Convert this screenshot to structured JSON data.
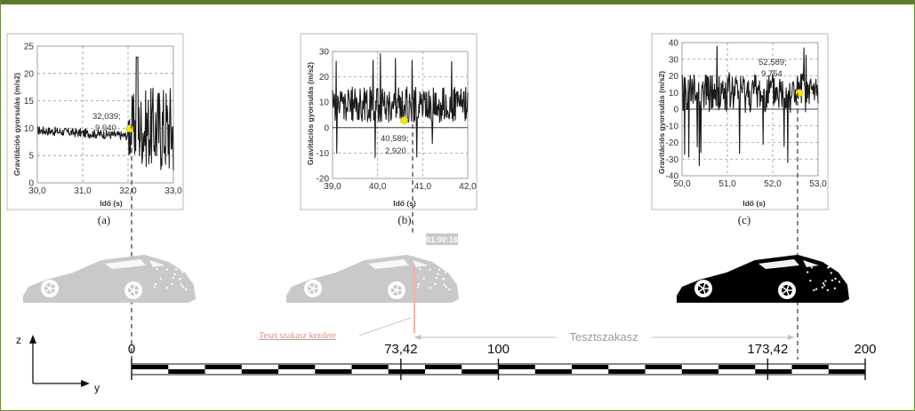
{
  "colors": {
    "frame": "#5a7a2c",
    "marker": "#f5e60a",
    "car_faded": "#c9c9c9",
    "car_dark": "#000000",
    "start_line": "#f4b3aa"
  },
  "panels": [
    {
      "id": "a",
      "letter": "(a)",
      "ylabel": "Gravitációs gyorsulás (m/s2)",
      "xlabel": "Idő (s)",
      "xlim": [
        30,
        33
      ],
      "ylim": [
        0,
        25
      ],
      "xticks": [
        "30,0",
        "31,0",
        "32,0",
        "33,0"
      ],
      "yticks": [
        "0",
        "5",
        "10",
        "15",
        "20",
        "25"
      ],
      "marker": {
        "x": 32.039,
        "y": 9.94
      },
      "annotation": [
        "32,039;",
        "9,940"
      ]
    },
    {
      "id": "b",
      "letter": "(b)",
      "ylabel": "Gravitációs gyorsulás (m/s2)",
      "xlabel": "Idő (s)",
      "xlim": [
        39,
        42
      ],
      "ylim": [
        -20,
        30
      ],
      "xticks": [
        "39,0",
        "40,0",
        "41,0",
        "42,0"
      ],
      "yticks": [
        "-20",
        "-10",
        "0",
        "10",
        "20",
        "30"
      ],
      "marker": {
        "x": 40.589,
        "y": 2.92
      },
      "annotation": [
        "40,589;",
        "2,920"
      ]
    },
    {
      "id": "c",
      "letter": "(c)",
      "ylabel": "Gravitációs gyorsulás (m/s2)",
      "xlabel": "Idő (s)",
      "xlim": [
        50,
        53
      ],
      "ylim": [
        -40,
        40
      ],
      "xticks": [
        "50,0",
        "51,0",
        "52,0",
        "53,0"
      ],
      "yticks": [
        "-40",
        "-30",
        "-20",
        "-10",
        "0",
        "10",
        "20",
        "30",
        "40"
      ],
      "marker": {
        "x": 52.589,
        "y": 9.754
      },
      "annotation": [
        "52,589;",
        "9,754"
      ]
    }
  ],
  "video_timestamp": "01:00:16",
  "ruler": {
    "min": 0,
    "max": 200,
    "labels": [
      {
        "value": 0,
        "text": "0"
      },
      {
        "value": 73.42,
        "text": "73,42"
      },
      {
        "value": 100,
        "text": "100"
      },
      {
        "value": 173.42,
        "text": "173,42"
      },
      {
        "value": 200,
        "text": "200"
      }
    ]
  },
  "section_label": "Tesztszakasz",
  "start_label": "Teszt szakasz kezdete",
  "axes_labels": {
    "z": "z",
    "y": "y"
  }
}
